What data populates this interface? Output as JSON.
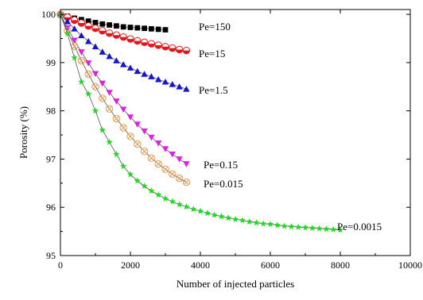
{
  "chart_data": {
    "type": "scatter",
    "title": "",
    "xlabel": "Number of injected particles",
    "ylabel": "Porosity (%)",
    "xlim": [
      0,
      10000
    ],
    "ylim": [
      95,
      100.1
    ],
    "x_ticks": [
      "0",
      "2000",
      "4000",
      "6000",
      "8000",
      "10000"
    ],
    "y_ticks": [
      "95",
      "96",
      "97",
      "98",
      "99",
      "100"
    ],
    "grid": false,
    "series": [
      {
        "name": "Pe=150",
        "color": "#000000",
        "marker": "square",
        "x": [
          0,
          200,
          400,
          600,
          800,
          1000,
          1200,
          1400,
          1600,
          1800,
          2000,
          2200,
          2400,
          2600,
          2800,
          3000
        ],
        "y": [
          100.0,
          99.96,
          99.92,
          99.89,
          99.86,
          99.83,
          99.8,
          99.78,
          99.76,
          99.74,
          99.73,
          99.72,
          99.71,
          99.7,
          99.69,
          99.68
        ]
      },
      {
        "name": "Pe=15",
        "color": "#e8141b",
        "marker": "circle-half",
        "x": [
          0,
          200,
          400,
          600,
          800,
          1000,
          1200,
          1400,
          1600,
          1800,
          2000,
          2200,
          2400,
          2600,
          2800,
          3000,
          3200,
          3400,
          3600
        ],
        "y": [
          100.0,
          99.94,
          99.88,
          99.82,
          99.76,
          99.71,
          99.66,
          99.61,
          99.57,
          99.53,
          99.49,
          99.45,
          99.42,
          99.39,
          99.36,
          99.33,
          99.3,
          99.27,
          99.25
        ]
      },
      {
        "name": "Pe=1.5",
        "color": "#1414d4",
        "marker": "triangle-up",
        "x": [
          0,
          200,
          400,
          600,
          800,
          1000,
          1200,
          1400,
          1600,
          1800,
          2000,
          2200,
          2400,
          2600,
          2800,
          3000,
          3200,
          3400,
          3600
        ],
        "y": [
          100.0,
          99.85,
          99.7,
          99.56,
          99.44,
          99.33,
          99.22,
          99.13,
          99.04,
          98.96,
          98.89,
          98.82,
          98.76,
          98.71,
          98.65,
          98.6,
          98.55,
          98.5,
          98.45
        ]
      },
      {
        "name": "Pe=0.15",
        "color": "#e020e0",
        "marker": "triangle-down",
        "x": [
          0,
          200,
          400,
          600,
          800,
          1000,
          1200,
          1400,
          1600,
          1800,
          2000,
          2200,
          2400,
          2600,
          2800,
          3000,
          3200,
          3400,
          3600
        ],
        "y": [
          100.0,
          99.72,
          99.46,
          99.22,
          98.99,
          98.77,
          98.57,
          98.38,
          98.2,
          98.03,
          97.87,
          97.72,
          97.58,
          97.45,
          97.33,
          97.21,
          97.1,
          97.0,
          96.9
        ]
      },
      {
        "name": "Pe=0.015",
        "color": "#e39a52",
        "marker": "circle-x",
        "x": [
          0,
          200,
          400,
          600,
          800,
          1000,
          1200,
          1400,
          1600,
          1800,
          2000,
          2200,
          2400,
          2600,
          2800,
          3000,
          3200,
          3400,
          3600
        ],
        "y": [
          100.0,
          99.66,
          99.34,
          99.04,
          98.76,
          98.5,
          98.26,
          98.04,
          97.84,
          97.65,
          97.47,
          97.31,
          97.16,
          97.02,
          96.9,
          96.79,
          96.69,
          96.6,
          96.52
        ]
      },
      {
        "name": "Pe=0.0015",
        "color": "#22d822",
        "marker": "star",
        "x": [
          0,
          200,
          400,
          600,
          800,
          1000,
          1200,
          1400,
          1600,
          1800,
          2000,
          2200,
          2400,
          2600,
          2800,
          3000,
          3200,
          3400,
          3600,
          3800,
          4000,
          4200,
          4400,
          4600,
          4800,
          5000,
          5200,
          5400,
          5600,
          5800,
          6000,
          6200,
          6400,
          6600,
          6800,
          7000,
          7200,
          7400,
          7600,
          7800,
          8000
        ],
        "y": [
          100.0,
          99.6,
          99.1,
          98.6,
          98.35,
          98.0,
          97.6,
          97.35,
          97.1,
          96.85,
          96.68,
          96.55,
          96.44,
          96.34,
          96.26,
          96.18,
          96.12,
          96.06,
          96.01,
          95.96,
          95.92,
          95.88,
          95.84,
          95.81,
          95.78,
          95.75,
          95.73,
          95.7,
          95.68,
          95.66,
          95.65,
          95.63,
          95.61,
          95.6,
          95.59,
          95.58,
          95.57,
          95.56,
          95.55,
          95.54,
          95.53
        ]
      }
    ]
  }
}
